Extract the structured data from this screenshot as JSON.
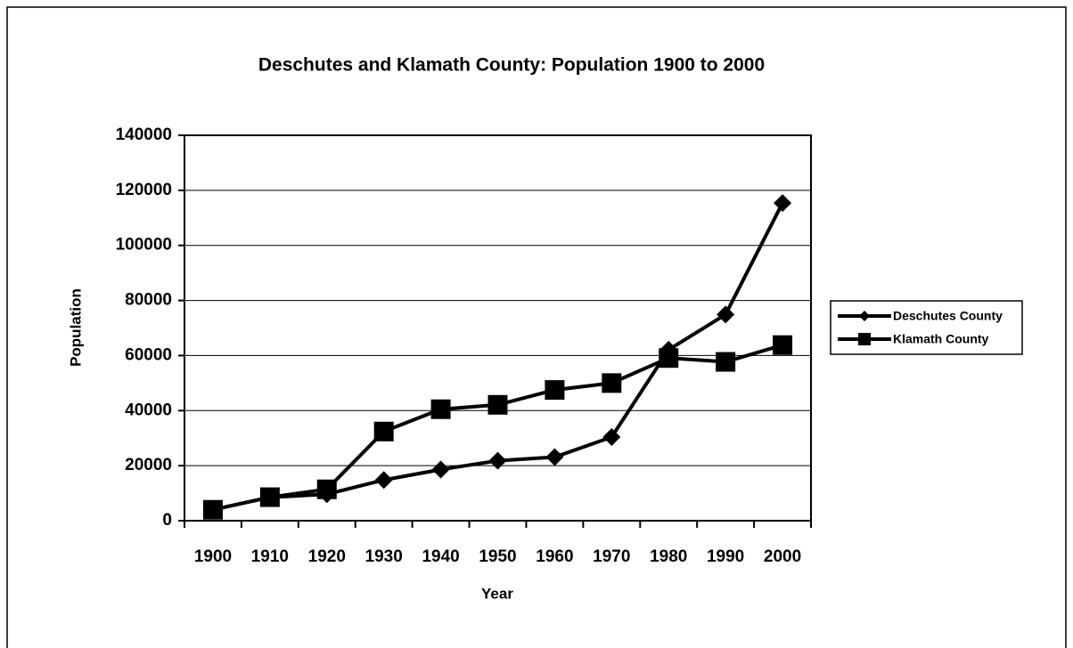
{
  "chart_data": {
    "type": "line",
    "title": "Deschutes and Klamath County: Population 1900 to 2000",
    "x_label": "Year",
    "y_label": "Population",
    "categories": [
      "1900",
      "1910",
      "1920",
      "1930",
      "1940",
      "1950",
      "1960",
      "1970",
      "1980",
      "1990",
      "2000"
    ],
    "series": [
      {
        "name": "Deschutes County",
        "color": "#000000",
        "marker": "diamond",
        "values": [
          4000,
          8500,
          9600,
          14800,
          18600,
          21800,
          23100,
          30400,
          62100,
          74900,
          115400
        ]
      },
      {
        "name": "Klamath County",
        "color": "#000000",
        "marker": "square",
        "values": [
          3970,
          8550,
          11400,
          32400,
          40500,
          42100,
          47500,
          50000,
          59100,
          57700,
          63800
        ]
      }
    ],
    "ylim": [
      0,
      140000
    ],
    "yticks": [
      0,
      20000,
      40000,
      60000,
      80000,
      100000,
      120000,
      140000
    ],
    "grid": true,
    "legend": "right"
  }
}
